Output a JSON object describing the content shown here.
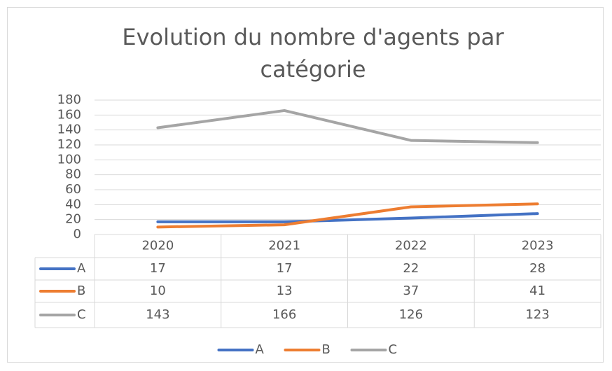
{
  "chart_data": {
    "type": "line",
    "title": "Evolution du nombre d'agents par catégorie",
    "categories": [
      "2020",
      "2021",
      "2022",
      "2023"
    ],
    "series": [
      {
        "name": "A",
        "color": "#4472c4",
        "values": [
          17,
          17,
          22,
          28
        ]
      },
      {
        "name": "B",
        "color": "#ed7d31",
        "values": [
          10,
          13,
          37,
          41
        ]
      },
      {
        "name": "C",
        "color": "#a5a5a5",
        "values": [
          143,
          166,
          126,
          123
        ]
      }
    ],
    "ylim": [
      0,
      180
    ],
    "yticks": [
      0,
      20,
      40,
      60,
      80,
      100,
      120,
      140,
      160,
      180
    ],
    "grid": true,
    "legend": "bottom",
    "data_table": true
  }
}
